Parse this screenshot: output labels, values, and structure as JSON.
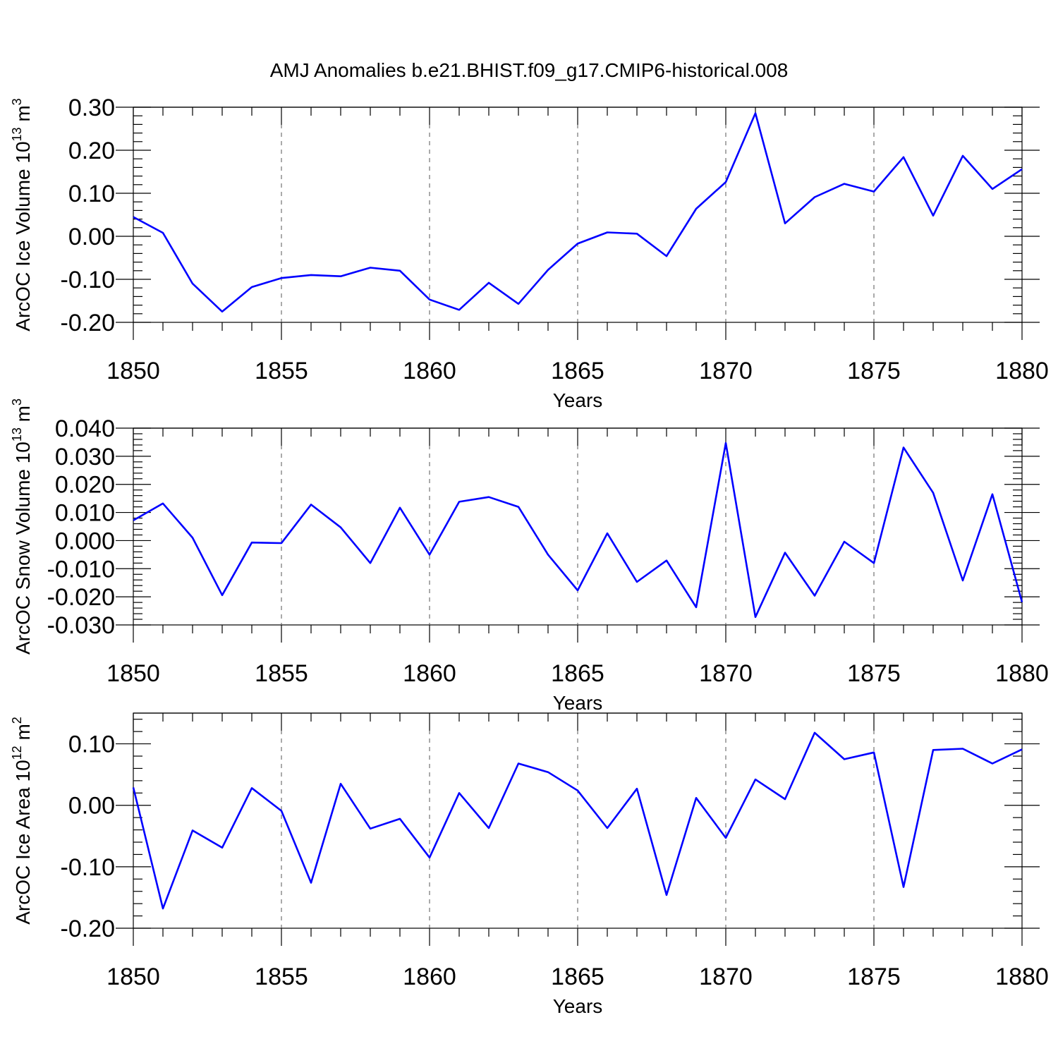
{
  "title": "AMJ Anomalies b.e21.BHIST.f09_g17.CMIP6-historical.008",
  "series_color": "#0000ff",
  "chart_data": [
    {
      "type": "line",
      "title": "AMJ Anomalies b.e21.BHIST.f09_g17.CMIP6-historical.008",
      "xlabel": "Years",
      "ylabel": "ArcOC Ice Volume 10",
      "ylabel_exp": "13",
      "ylabel_unit": "m",
      "ylabel_unit_exp": "3",
      "xlim": [
        1850,
        1880
      ],
      "ylim": [
        -0.2,
        0.3
      ],
      "ytick_max": 0.3,
      "xticks": [
        1850,
        1855,
        1860,
        1865,
        1870,
        1875,
        1880
      ],
      "xtick_labels": [
        "1850",
        "1855",
        "1860",
        "1865",
        "1870",
        "1875",
        "1880"
      ],
      "yticks": [
        -0.2,
        -0.1,
        0.0,
        0.1,
        0.2,
        0.3
      ],
      "ytick_labels": [
        "-0.20",
        "-0.10",
        "0.00",
        "0.10",
        "0.20",
        "0.30"
      ],
      "grid": "vertical dashed at major x ticks",
      "x": [
        1850,
        1851,
        1852,
        1853,
        1854,
        1855,
        1856,
        1857,
        1858,
        1859,
        1860,
        1861,
        1862,
        1863,
        1864,
        1865,
        1866,
        1867,
        1868,
        1869,
        1870,
        1871,
        1872,
        1873,
        1874,
        1875,
        1876,
        1877,
        1878,
        1879,
        1880
      ],
      "values": [
        0.045,
        0.008,
        -0.11,
        -0.175,
        -0.118,
        -0.097,
        -0.09,
        -0.093,
        -0.073,
        -0.08,
        -0.147,
        -0.171,
        -0.108,
        -0.157,
        -0.078,
        -0.017,
        0.009,
        0.006,
        -0.046,
        0.064,
        0.126,
        0.286,
        0.03,
        0.091,
        0.122,
        0.104,
        0.184,
        0.048,
        0.187,
        0.11,
        0.156
      ]
    },
    {
      "type": "line",
      "xlabel": "Years",
      "ylabel": "ArcOC Snow Volume 10",
      "ylabel_exp": "13",
      "ylabel_unit": "m",
      "ylabel_unit_exp": "3",
      "xlim": [
        1850,
        1880
      ],
      "ylim": [
        -0.03,
        0.04
      ],
      "ytick_max": 0.04,
      "xticks": [
        1850,
        1855,
        1860,
        1865,
        1870,
        1875,
        1880
      ],
      "xtick_labels": [
        "1850",
        "1855",
        "1860",
        "1865",
        "1870",
        "1875",
        "1880"
      ],
      "yticks": [
        -0.03,
        -0.02,
        -0.01,
        0.0,
        0.01,
        0.02,
        0.03,
        0.04
      ],
      "ytick_labels": [
        "-0.030",
        "-0.020",
        "-0.010",
        "0.000",
        "0.010",
        "0.020",
        "0.030",
        "0.040"
      ],
      "grid": "vertical dashed at major x ticks",
      "x": [
        1850,
        1851,
        1852,
        1853,
        1854,
        1855,
        1856,
        1857,
        1858,
        1859,
        1860,
        1861,
        1862,
        1863,
        1864,
        1865,
        1866,
        1867,
        1868,
        1869,
        1870,
        1871,
        1872,
        1873,
        1874,
        1875,
        1876,
        1877,
        1878,
        1879,
        1880
      ],
      "values": [
        0.0072,
        0.0132,
        0.001,
        -0.0194,
        -0.0007,
        -0.0009,
        0.0128,
        0.0047,
        -0.008,
        0.0117,
        -0.005,
        0.0138,
        0.0155,
        0.012,
        -0.005,
        -0.0177,
        0.0026,
        -0.0147,
        -0.0071,
        -0.0237,
        0.0347,
        -0.0272,
        -0.0043,
        -0.0196,
        -0.0004,
        -0.008,
        0.0331,
        0.017,
        -0.0142,
        0.0165,
        -0.0219
      ]
    },
    {
      "type": "line",
      "xlabel": "Years",
      "ylabel": "ArcOC Ice Area 10",
      "ylabel_exp": "12",
      "ylabel_unit": "m",
      "ylabel_unit_exp": "2",
      "xlim": [
        1850,
        1880
      ],
      "ylim": [
        -0.2,
        0.15
      ],
      "ytick_max": 0.15,
      "xticks": [
        1850,
        1855,
        1860,
        1865,
        1870,
        1875,
        1880
      ],
      "xtick_labels": [
        "1850",
        "1855",
        "1860",
        "1865",
        "1870",
        "1875",
        "1880"
      ],
      "yticks": [
        -0.2,
        -0.1,
        0.0,
        0.1
      ],
      "ytick_labels": [
        "-0.20",
        "-0.10",
        "0.00",
        "0.10"
      ],
      "grid": "vertical dashed at major x ticks",
      "x": [
        1850,
        1851,
        1852,
        1853,
        1854,
        1855,
        1856,
        1857,
        1858,
        1859,
        1860,
        1861,
        1862,
        1863,
        1864,
        1865,
        1866,
        1867,
        1868,
        1869,
        1870,
        1871,
        1872,
        1873,
        1874,
        1875,
        1876,
        1877,
        1878,
        1879,
        1880
      ],
      "values": [
        0.029,
        -0.168,
        -0.041,
        -0.069,
        0.028,
        -0.009,
        -0.126,
        0.035,
        -0.038,
        -0.022,
        -0.085,
        0.02,
        -0.037,
        0.068,
        0.054,
        0.024,
        -0.037,
        0.027,
        -0.146,
        0.012,
        -0.053,
        0.042,
        0.01,
        0.118,
        0.075,
        0.086,
        -0.133,
        0.09,
        0.092,
        0.068,
        0.091
      ]
    }
  ]
}
